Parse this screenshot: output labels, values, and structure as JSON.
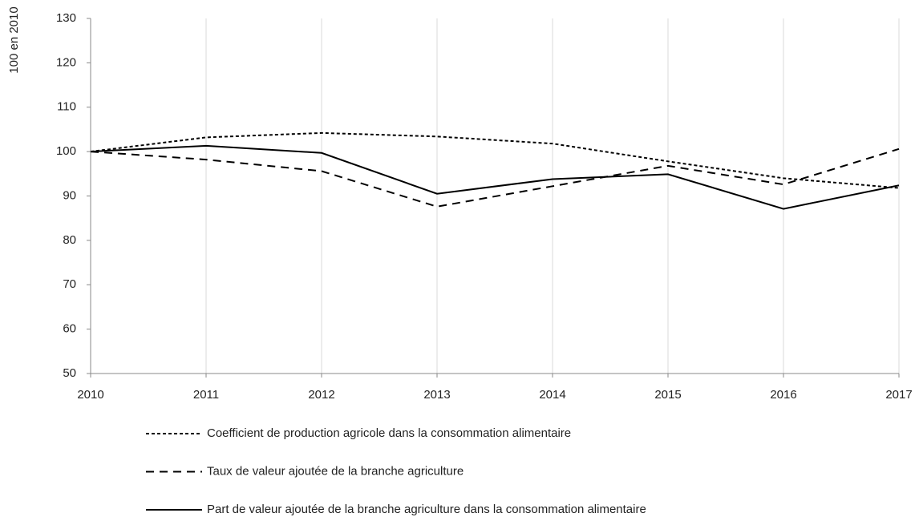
{
  "chart_data": {
    "type": "line",
    "y_label": "100 en 2010",
    "x": [
      2010,
      2011,
      2012,
      2013,
      2014,
      2015,
      2016,
      2017
    ],
    "xlim": [
      2010,
      2017
    ],
    "xticks": [
      2010,
      2011,
      2012,
      2013,
      2014,
      2015,
      2016,
      2017
    ],
    "ylim": [
      50,
      130
    ],
    "yticks": [
      50,
      60,
      70,
      80,
      90,
      100,
      110,
      120,
      130
    ],
    "grid": "x",
    "legend": "bottom",
    "series": [
      {
        "name": "Coefficient de production agricole dans la consommation alimentaire",
        "color": "#000000",
        "line_style": "dotted",
        "values": [
          100,
          103.2,
          104.2,
          103.4,
          101.8,
          97.8,
          94,
          91.8
        ]
      },
      {
        "name": "Taux de valeur ajoutée de la branche agriculture",
        "color": "#000000",
        "line_style": "dashed",
        "values": [
          100,
          98.2,
          95.6,
          87.6,
          92.2,
          96.8,
          92.6,
          100.6
        ]
      },
      {
        "name": "Part de valeur ajoutée de la branche agriculture dans la consommation alimentaire",
        "color": "#000000",
        "line_style": "solid",
        "values": [
          100,
          101.3,
          99.7,
          90.5,
          93.8,
          94.9,
          87.1,
          92.4
        ]
      }
    ]
  }
}
